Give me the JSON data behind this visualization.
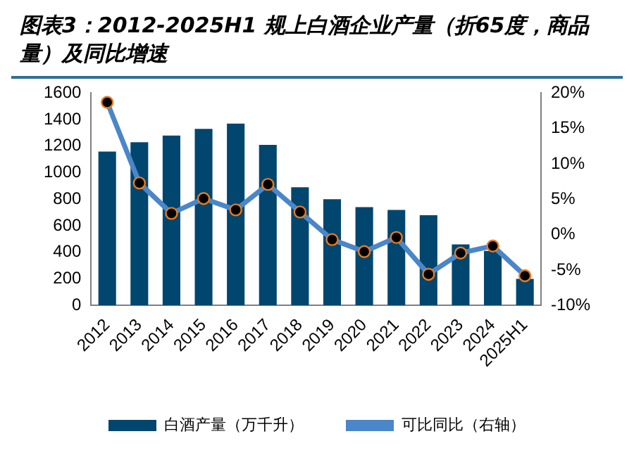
{
  "chart_data": {
    "type": "bar",
    "title": "图表3：2012-2025H1 规上白酒企业产量（折65度，商品量）及同比增速",
    "categories": [
      "2012",
      "2013",
      "2014",
      "2015",
      "2016",
      "2017",
      "2018",
      "2019",
      "2020",
      "2021",
      "2022",
      "2023",
      "2024",
      "2025H1"
    ],
    "series": [
      {
        "name": "白酒产量（万千升）",
        "color": "#00466e",
        "values": [
          1160,
          1230,
          1280,
          1330,
          1370,
          1210,
          890,
          800,
          740,
          720,
          680,
          460,
          410,
          200
        ]
      },
      {
        "name": "可比同比（右轴）",
        "type": "line",
        "axis": "y2",
        "color": "#4a86c8",
        "values": [
          18.7,
          7.3,
          3.0,
          5.1,
          3.5,
          7.1,
          3.2,
          -0.7,
          -2.4,
          -0.4,
          -5.6,
          -2.6,
          -1.6,
          -5.8
        ]
      }
    ],
    "ylim": [
      0,
      1600
    ],
    "yticks": [
      0,
      200,
      400,
      600,
      800,
      1000,
      1200,
      1400,
      1600
    ],
    "y2lim": [
      -10,
      20
    ],
    "y2ticks": [
      {
        "value": -10,
        "label": "-10%"
      },
      {
        "value": -5,
        "label": "-5%"
      },
      {
        "value": 0,
        "label": "0%"
      },
      {
        "value": 5,
        "label": "5%"
      },
      {
        "value": 10,
        "label": "10%"
      },
      {
        "value": 15,
        "label": "15%"
      },
      {
        "value": 20,
        "label": "20%"
      }
    ],
    "marker": "circle",
    "legend": "bottom",
    "grid": false
  }
}
